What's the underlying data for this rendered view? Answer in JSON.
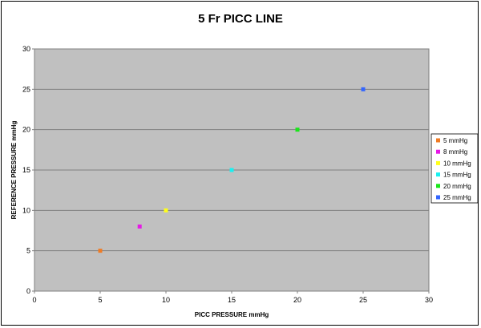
{
  "chart_data": {
    "type": "scatter",
    "title": "5 Fr PICC LINE",
    "xlabel": "PICC PRESSURE mmHg",
    "ylabel": "REFERENCE PRESSURE mmHg",
    "xlim": [
      0,
      30
    ],
    "ylim": [
      0,
      30
    ],
    "xticks": [
      0,
      5,
      10,
      15,
      20,
      25,
      30
    ],
    "yticks": [
      0,
      5,
      10,
      15,
      20,
      25,
      30
    ],
    "grid": "horizontal",
    "plot_background": "#c0c0c0",
    "legend_position": "right",
    "series": [
      {
        "name": "5 mmHg",
        "color": "#f07b24",
        "marker": "square",
        "points": [
          [
            5,
            5
          ]
        ]
      },
      {
        "name": "8 mmHg",
        "color": "#e619e6",
        "marker": "square",
        "points": [
          [
            8,
            8
          ]
        ]
      },
      {
        "name": "10 mmHg",
        "color": "#ffff1a",
        "marker": "square",
        "points": [
          [
            10,
            10
          ]
        ]
      },
      {
        "name": "15 mmHg",
        "color": "#1af0f0",
        "marker": "square",
        "points": [
          [
            15,
            15
          ]
        ]
      },
      {
        "name": "20 mmHg",
        "color": "#1ae61a",
        "marker": "square",
        "points": [
          [
            20,
            20
          ]
        ]
      },
      {
        "name": "25 mmHg",
        "color": "#3366ff",
        "marker": "square",
        "points": [
          [
            25,
            25
          ]
        ]
      }
    ]
  }
}
